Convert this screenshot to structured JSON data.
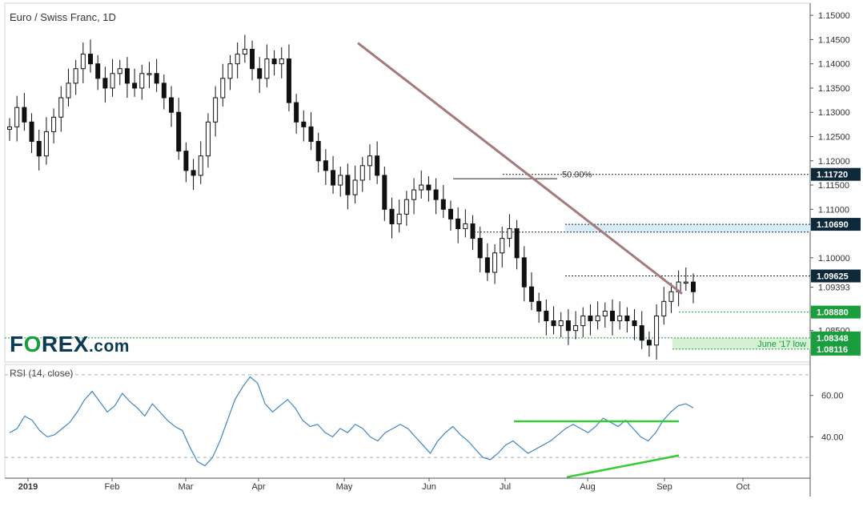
{
  "chart_data": [
    {
      "type": "candlestick",
      "title": "Euro / Swiss Franc, 1D",
      "x_ticks": [
        "2019",
        "Feb",
        "Mar",
        "Apr",
        "May",
        "Jun",
        "Jul",
        "Aug",
        "Sep",
        "Oct"
      ],
      "y_ticks": [
        "1.15000",
        "1.14500",
        "1.14000",
        "1.13500",
        "1.13000",
        "1.12500",
        "1.12000",
        "1.11500",
        "1.11000",
        "1.10000",
        "1.09393",
        "1.08880",
        "1.08500"
      ],
      "ylim": [
        1.0785,
        1.1525
      ],
      "price_labels": [
        {
          "value": 1.1172,
          "label": "1.11720",
          "color": "#0e2a3a"
        },
        {
          "value": 1.1069,
          "label": "1.10690",
          "color": "#0e2a3a"
        },
        {
          "value": 1.09625,
          "label": "1.09625",
          "color": "#0e2a3a"
        },
        {
          "value": 1.0888,
          "label": "1.08880",
          "color": "#1a9d3c"
        },
        {
          "value": 1.08348,
          "label": "1.08348",
          "color": "#1a9d3c"
        },
        {
          "value": 1.08116,
          "label": "1.08116",
          "color": "#1a9d3c"
        }
      ],
      "annotations": {
        "fib": "50.00%",
        "june_low": "June '17 low"
      },
      "candles_anchor_close": [
        1.127,
        1.131,
        1.128,
        1.124,
        1.121,
        1.126,
        1.129,
        1.133,
        1.136,
        1.139,
        1.142,
        1.14,
        1.137,
        1.135,
        1.138,
        1.139,
        1.136,
        1.135,
        1.138,
        1.138,
        1.136,
        1.133,
        1.13,
        1.122,
        1.118,
        1.117,
        1.121,
        1.128,
        1.133,
        1.137,
        1.14,
        1.142,
        1.143,
        1.139,
        1.137,
        1.141,
        1.14,
        1.141,
        1.132,
        1.128,
        1.127,
        1.124,
        1.12,
        1.118,
        1.115,
        1.117,
        1.113,
        1.116,
        1.119,
        1.121,
        1.117,
        1.11,
        1.107,
        1.109,
        1.112,
        1.114,
        1.115,
        1.114,
        1.112,
        1.11,
        1.108,
        1.106,
        1.107,
        1.104,
        1.1,
        1.097,
        1.101,
        1.104,
        1.106,
        1.1,
        1.094,
        1.091,
        1.089,
        1.087,
        1.086,
        1.087,
        1.085,
        1.086,
        1.088,
        1.087,
        1.088,
        1.089,
        1.087,
        1.088,
        1.087,
        1.086,
        1.083,
        1.082,
        1.088,
        1.091,
        1.093,
        1.095,
        1.095,
        1.093
      ]
    },
    {
      "type": "line",
      "title": "RSI (14, close)",
      "y_ticks": [
        "60.00",
        "40.00"
      ],
      "ylim": [
        20,
        75
      ],
      "levels": [
        70,
        30
      ],
      "values": [
        42,
        44,
        50,
        48,
        43,
        40,
        41,
        44,
        47,
        52,
        58,
        62,
        57,
        52,
        55,
        61,
        57,
        54,
        50,
        56,
        52,
        48,
        45,
        43,
        35,
        28,
        26,
        30,
        38,
        48,
        58,
        64,
        69,
        66,
        56,
        52,
        55,
        58,
        54,
        48,
        45,
        46,
        42,
        40,
        44,
        42,
        46,
        44,
        40,
        38,
        42,
        44,
        46,
        44,
        40,
        36,
        32,
        38,
        42,
        45,
        41,
        38,
        34,
        30,
        29,
        32,
        36,
        38,
        35,
        32,
        34,
        36,
        38,
        41,
        44,
        46,
        44,
        42,
        45,
        49,
        47,
        45,
        48,
        44,
        40,
        38,
        42,
        48,
        52,
        55,
        56,
        54
      ]
    }
  ]
}
